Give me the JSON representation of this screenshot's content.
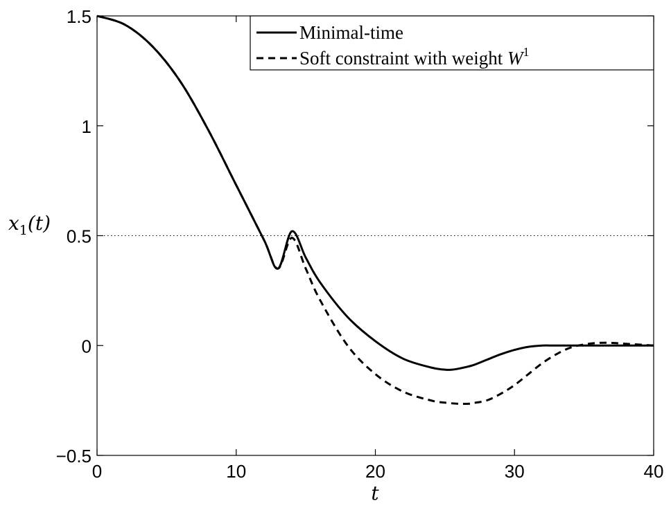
{
  "chart_data": {
    "type": "line",
    "xlabel": "t",
    "ylabel": "x1(t)",
    "xlim": [
      0,
      40
    ],
    "ylim": [
      -0.5,
      1.5
    ],
    "xticks": [
      0,
      10,
      20,
      30,
      40
    ],
    "yticks": [
      -0.5,
      0,
      0.5,
      1,
      1.5
    ],
    "xtick_labels": [
      "0",
      "10",
      "20",
      "30",
      "40"
    ],
    "ytick_labels": [
      "−0.5",
      "0",
      "0.5",
      "1",
      "1.5"
    ],
    "grid": false,
    "legend_position": "top-right",
    "reference_line": {
      "y": 0.5,
      "style": "dotted"
    },
    "series": [
      {
        "name": "Minimal-time",
        "style": "solid",
        "color": "#000000",
        "x": [
          0,
          2,
          4,
          6,
          8,
          10,
          12,
          13,
          14,
          15,
          16,
          18,
          20,
          22,
          24,
          25,
          25.5,
          26,
          27,
          28,
          29,
          30,
          31,
          32,
          32.5,
          33,
          35,
          40
        ],
        "y": [
          1.5,
          1.46,
          1.36,
          1.2,
          0.98,
          0.73,
          0.48,
          0.35,
          0.52,
          0.4,
          0.29,
          0.13,
          0.02,
          -0.06,
          -0.1,
          -0.11,
          -0.11,
          -0.105,
          -0.09,
          -0.065,
          -0.04,
          -0.02,
          -0.006,
          0.0,
          0.0,
          0.0,
          0.0,
          0.0
        ]
      },
      {
        "name": "Soft constraint with weight W¹",
        "style": "dashed",
        "color": "#000000",
        "x": [
          0,
          2,
          4,
          6,
          8,
          10,
          12,
          13,
          14,
          15,
          16,
          18,
          20,
          22,
          24,
          25,
          26,
          26.7,
          27,
          28,
          29,
          30,
          31,
          32,
          33,
          34,
          35,
          36,
          37,
          38,
          40
        ],
        "y": [
          1.5,
          1.46,
          1.36,
          1.2,
          0.98,
          0.73,
          0.48,
          0.35,
          0.49,
          0.35,
          0.21,
          0.0,
          -0.13,
          -0.21,
          -0.25,
          -0.26,
          -0.265,
          -0.265,
          -0.262,
          -0.25,
          -0.22,
          -0.18,
          -0.13,
          -0.08,
          -0.04,
          -0.01,
          0.005,
          0.012,
          0.012,
          0.008,
          0.0
        ]
      }
    ],
    "legend": {
      "entries": [
        "Minimal-time",
        "Soft constraint with weight "
      ],
      "last_entry_math": "W",
      "last_entry_sup": "1"
    }
  }
}
